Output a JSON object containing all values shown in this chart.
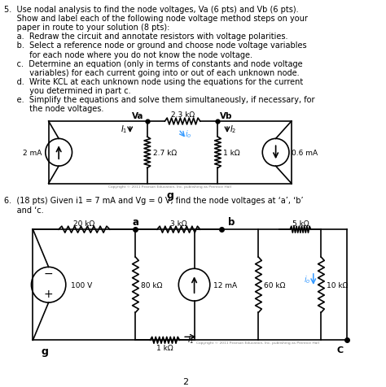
{
  "bg_color": "#ffffff",
  "text_color": "#000000",
  "line_color": "#000000",
  "cyan_color": "#3399ff",
  "fig_width": 4.74,
  "fig_height": 4.77,
  "q5_text_lines": [
    "5.  Use nodal analysis to find the node voltages, Va (6 pts) and Vb (6 pts).",
    "     Show and label each of the following node voltage method steps on your",
    "     paper in route to your solution (8 pts):",
    "     a.  Redraw the circuit and annotate resistors with voltage polarities.",
    "     b.  Select a reference node or ground and choose node voltage variables",
    "          for each node where you do not know the node voltage.",
    "     c.  Determine an equation (only in terms of constants and node voltage",
    "          variables) for each current going into or out of each unknown node.",
    "     d.  Write KCL at each unknown node using the equations for the current",
    "          you determined in part c.",
    "     e.  Simplify the equations and solve them simultaneously, if necessary, for",
    "          the node voltages."
  ],
  "q6_text_lines": [
    "6.  (18 pts) Given i1 = 7 mA and Vg = 0 V, find the node voltages at ‘a’, ‘b’",
    "     and ‘c."
  ],
  "copyright_text": "Copyright © 2011 Pearson Education, Inc. publishing as Prentice Hall"
}
